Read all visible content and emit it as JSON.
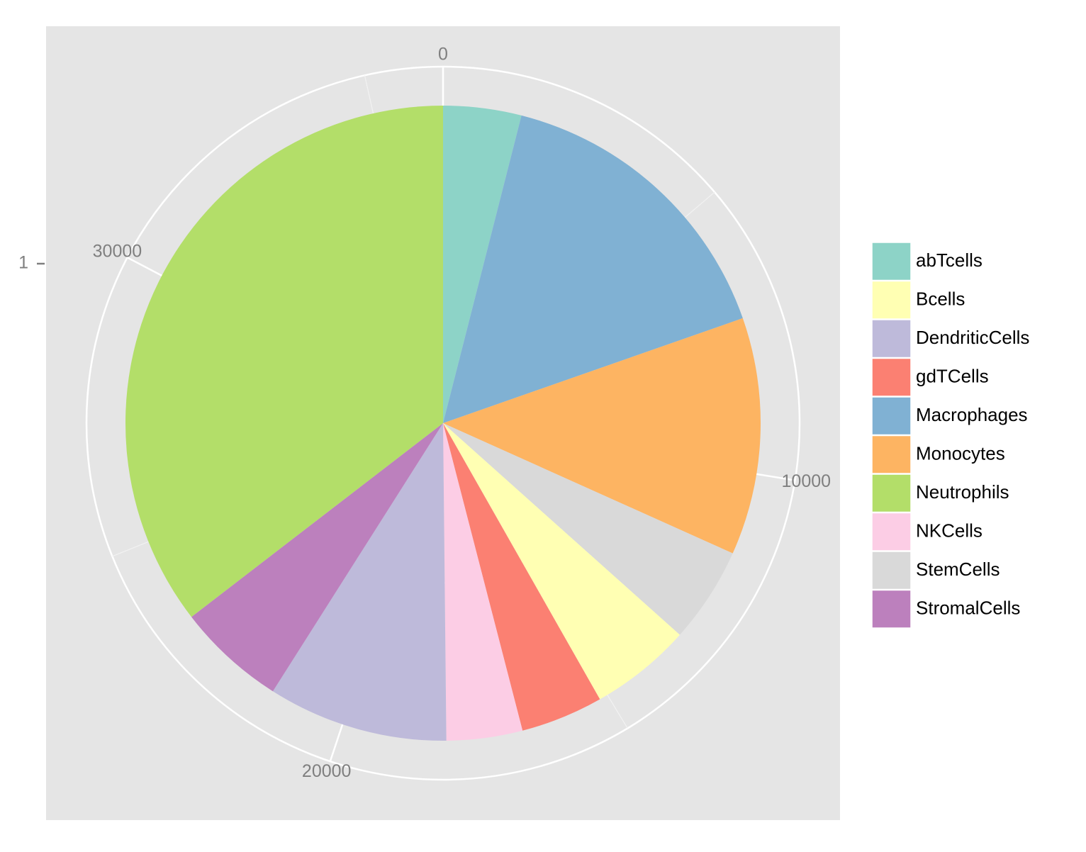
{
  "chart_data": {
    "type": "pie",
    "categories": [
      "abTcells",
      "Macrophages",
      "Monocytes",
      "StemCells",
      "Bcells",
      "gdTCells",
      "NKCells",
      "DendriticCells",
      "StromalCells",
      "Neutrophils"
    ],
    "values": [
      1441,
      5684,
      4384,
      1773,
      1875,
      1522,
      1401,
      3325,
      2016,
      12859
    ],
    "colors": [
      "#8dd3c7",
      "#80b1d3",
      "#fdb462",
      "#d9d9d9",
      "#ffffb3",
      "#fb8072",
      "#fccde5",
      "#bebada",
      "#bc80bd",
      "#b3de69"
    ],
    "xlim": [
      0,
      36280
    ],
    "xticks": [
      0,
      10000,
      20000,
      30000
    ],
    "xminor_ticks": [
      5000,
      15000,
      25000,
      35000
    ],
    "y_categories": [
      "1"
    ],
    "legend": "right",
    "grid": true
  }
}
